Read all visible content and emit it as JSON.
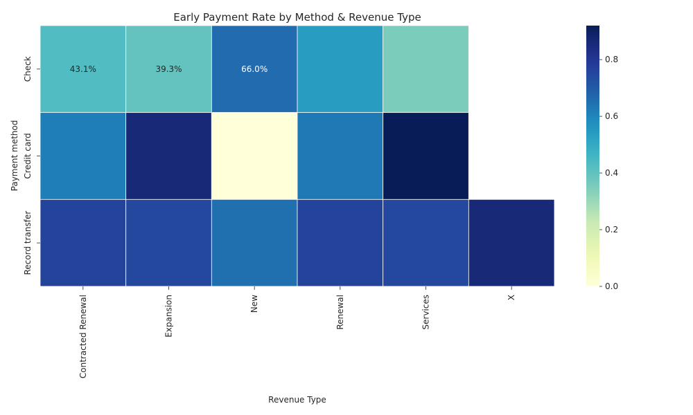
{
  "chart_data": {
    "type": "heatmap",
    "title": "Early Payment Rate by Method & Revenue Type",
    "xlabel": "Revenue Type",
    "ylabel": "Payment method",
    "x_categories": [
      "Contracted Renewal",
      "Expansion",
      "New",
      "Renewal",
      "Services",
      "X"
    ],
    "y_categories": [
      "Check",
      "Credit card",
      "Record transfer"
    ],
    "values": [
      [
        0.431,
        0.393,
        0.66,
        0.54,
        0.35,
        null
      ],
      [
        0.62,
        0.86,
        0.0,
        0.63,
        0.92,
        null
      ],
      [
        0.76,
        0.75,
        0.65,
        0.76,
        0.75,
        0.86
      ]
    ],
    "cell_labels": [
      [
        "43.1%",
        "39.3%",
        "66.0%",
        "",
        "",
        ""
      ],
      [
        "",
        "",
        "",
        "",
        "",
        ""
      ],
      [
        "",
        "",
        "",
        "",
        "",
        ""
      ]
    ],
    "colormap": "YlGnBu",
    "vmin": 0.0,
    "vmax": 0.92,
    "colorbar_ticks": [
      "0.0",
      "0.2",
      "0.4",
      "0.6",
      "0.8"
    ],
    "colorbar_tick_values": [
      0.0,
      0.2,
      0.4,
      0.6,
      0.8
    ],
    "grid": false
  }
}
